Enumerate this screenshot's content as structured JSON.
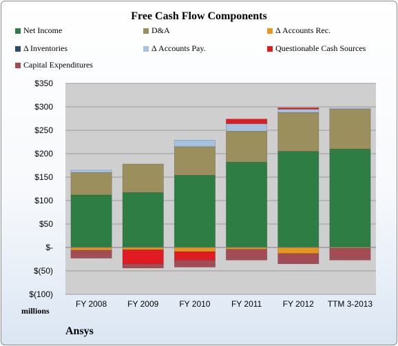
{
  "chart_data": {
    "type": "bar",
    "stacked": true,
    "title": "Free Cash Flow Components",
    "categories": [
      "FY 2008",
      "FY 2009",
      "FY 2010",
      "FY 2011",
      "FY 2012",
      "TTM 3-2013"
    ],
    "y_tick_labels": [
      "$(100)",
      "$(50)",
      "$-",
      "$50",
      "$100",
      "$150",
      "$200",
      "$250",
      "$300",
      "$350"
    ],
    "ylim": [
      -100,
      350
    ],
    "grid": true,
    "legend_position": "top",
    "series": [
      {
        "name": "Net Income",
        "color": "#2e7d45",
        "values": [
          112,
          117,
          154,
          182,
          205,
          210
        ]
      },
      {
        "name": "D&A",
        "color": "#9c8f5e",
        "values": [
          48,
          61,
          61,
          66,
          83,
          85
        ]
      },
      {
        "name": "Δ Accounts Rec.",
        "color": "#e5961b",
        "values": [
          -6,
          -5,
          -9,
          -4,
          -13,
          -2
        ]
      },
      {
        "name": "Δ Inventories",
        "color": "#2f4a66",
        "values": [
          0,
          0,
          0,
          0,
          0,
          0
        ]
      },
      {
        "name": "Δ Accounts Pay.",
        "color": "#a7c1e0",
        "values": [
          5,
          0,
          14,
          16,
          7,
          2
        ]
      },
      {
        "name": "Questionable Cash Sources",
        "color": "#e11b22",
        "values": [
          0,
          -30,
          -18,
          10,
          3,
          0
        ]
      },
      {
        "name": "Capital Expenditures",
        "color": "#a24c55",
        "values": [
          -17,
          -9,
          -15,
          -23,
          -22,
          -25
        ]
      }
    ]
  },
  "footer": {
    "units": "millions",
    "company": "Ansys"
  }
}
